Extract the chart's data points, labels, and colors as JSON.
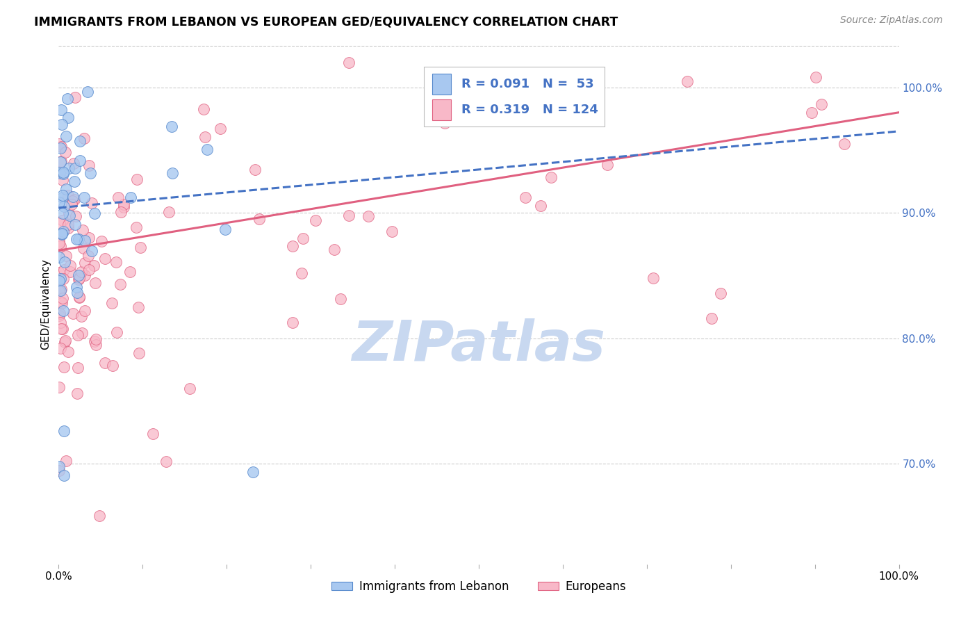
{
  "title": "IMMIGRANTS FROM LEBANON VS EUROPEAN GED/EQUIVALENCY CORRELATION CHART",
  "source_text": "Source: ZipAtlas.com",
  "ylabel": "GED/Equivalency",
  "legend_label1": "Immigrants from Lebanon",
  "legend_label2": "Europeans",
  "r1": 0.091,
  "n1": 53,
  "r2": 0.319,
  "n2": 124,
  "color1": "#A8C8F0",
  "color2": "#F8B8C8",
  "edge1_color": "#5588CC",
  "edge2_color": "#E06080",
  "line1_color": "#4472C4",
  "line2_color": "#E06080",
  "watermark": "ZIPatlas",
  "watermark_color": "#C8D8F0",
  "blue_text_color": "#4472C4",
  "ylim_low": 0.62,
  "ylim_high": 1.035,
  "yticks": [
    1.0,
    0.9,
    0.8,
    0.7
  ],
  "ytick_labels": [
    "100.0%",
    "90.0%",
    "80.0%",
    "70.0%"
  ],
  "xticks": [
    0,
    0.1,
    0.2,
    0.3,
    0.4,
    0.5,
    0.6,
    0.7,
    0.8,
    0.9,
    1.0
  ],
  "xtick_labels_show": [
    "0.0%",
    "",
    "",
    "",
    "",
    "",
    "",
    "",
    "",
    "",
    "100.0%"
  ],
  "line1_x0": 0.0,
  "line1_y0": 0.904,
  "line1_x1": 1.0,
  "line1_y1": 0.965,
  "line2_x0": 0.0,
  "line2_y0": 0.87,
  "line2_x1": 1.0,
  "line2_y1": 0.98
}
